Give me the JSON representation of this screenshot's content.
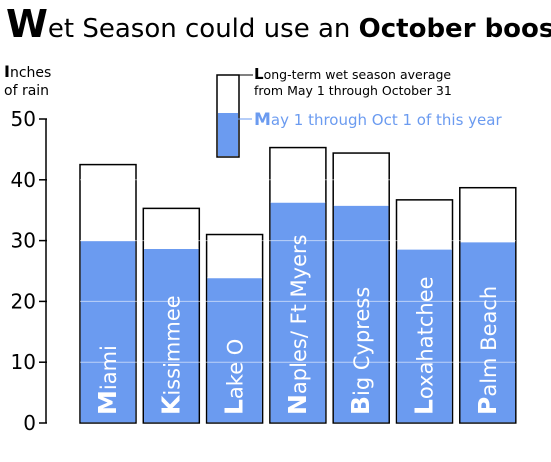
{
  "title": {
    "first_letter": "W",
    "plain": "et Season could use an ",
    "bold": "October boost"
  },
  "ylabel": {
    "first_letter": "I",
    "line1_rest": "nches",
    "line2": "of rain"
  },
  "legend": {
    "average_first": "L",
    "average_rest": "ong-term wet season average",
    "average_line2": "from May 1 through October 31",
    "current_first": "M",
    "current_rest": "ay 1 through Oct 1 of this year"
  },
  "colors": {
    "current_fill": "#6b9bf0",
    "average_fill": "#ffffff",
    "outline": "#000000"
  },
  "chart_data": {
    "type": "bar",
    "title": "Wet Season could use an October boost",
    "ylabel": "Inches of rain",
    "ylim": [
      0,
      50
    ],
    "yticks": [
      0,
      10,
      20,
      30,
      40,
      50
    ],
    "grid": false,
    "legend": "top-center",
    "categories": [
      "Miami",
      "Kissimmee",
      "Lake O",
      "Naples/ Ft Myers",
      "Big Cypress",
      "Loxahatchee",
      "Palm Beach"
    ],
    "series": [
      {
        "name": "Long-term wet season average from May 1 through October 31",
        "values": [
          42.5,
          35.3,
          31.0,
          45.3,
          44.4,
          36.7,
          38.7
        ]
      },
      {
        "name": "May 1 through Oct 1 of this year",
        "values": [
          30.0,
          28.7,
          23.9,
          36.3,
          35.8,
          28.6,
          29.8
        ]
      }
    ]
  }
}
